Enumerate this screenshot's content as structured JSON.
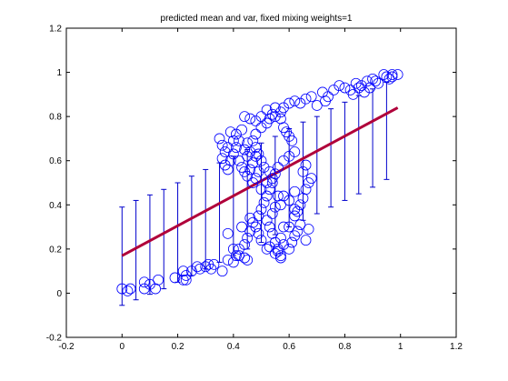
{
  "chart_data": {
    "type": "scatter",
    "title": "predicted mean and var, fixed mixing weights=1",
    "xlabel": "",
    "ylabel": "",
    "xlim": [
      -0.2,
      1.2
    ],
    "ylim": [
      -0.2,
      1.2
    ],
    "xticks": [
      "-0.2",
      "0",
      "0.2",
      "0.4",
      "0.6",
      "0.8",
      "1",
      "1.2"
    ],
    "yticks": [
      "-0.2",
      "0",
      "0.2",
      "0.4",
      "0.6",
      "0.8",
      "1",
      "1.2"
    ],
    "grid": false,
    "colors": {
      "points": "#0000ff",
      "errorbars": "#0000cc",
      "mean_line": "#b0003a",
      "axes": "#000000"
    },
    "mean_line": {
      "x": [
        0.0,
        0.99
      ],
      "y": [
        0.17,
        0.84
      ]
    },
    "errorbars": {
      "x": [
        0.0,
        0.05,
        0.1,
        0.15,
        0.2,
        0.25,
        0.3,
        0.35,
        0.4,
        0.45,
        0.5,
        0.55,
        0.6,
        0.65,
        0.7,
        0.75,
        0.8,
        0.85,
        0.9,
        0.95
      ],
      "y_low": [
        -0.055,
        -0.03,
        -0.005,
        0.02,
        0.05,
        0.08,
        0.11,
        0.14,
        0.17,
        0.2,
        0.23,
        0.265,
        0.3,
        0.33,
        0.36,
        0.39,
        0.42,
        0.45,
        0.48,
        0.515
      ],
      "y_high": [
        0.39,
        0.42,
        0.445,
        0.47,
        0.5,
        0.53,
        0.56,
        0.59,
        0.62,
        0.65,
        0.68,
        0.71,
        0.745,
        0.775,
        0.8,
        0.835,
        0.865,
        0.895,
        0.925,
        0.955
      ]
    },
    "points": [
      [
        0.0,
        0.02
      ],
      [
        0.02,
        0.01
      ],
      [
        0.03,
        0.02
      ],
      [
        0.08,
        0.02
      ],
      [
        0.08,
        0.05
      ],
      [
        0.1,
        0.04
      ],
      [
        0.12,
        0.02
      ],
      [
        0.13,
        0.06
      ],
      [
        0.19,
        0.07
      ],
      [
        0.22,
        0.06
      ],
      [
        0.23,
        0.06
      ],
      [
        0.23,
        0.08
      ],
      [
        0.22,
        0.1
      ],
      [
        0.25,
        0.1
      ],
      [
        0.27,
        0.12
      ],
      [
        0.28,
        0.11
      ],
      [
        0.3,
        0.12
      ],
      [
        0.31,
        0.13
      ],
      [
        0.33,
        0.13
      ],
      [
        0.32,
        0.11
      ],
      [
        0.36,
        0.1
      ],
      [
        0.38,
        0.15
      ],
      [
        0.4,
        0.14
      ],
      [
        0.42,
        0.17
      ],
      [
        0.44,
        0.16
      ],
      [
        0.45,
        0.15
      ],
      [
        0.38,
        0.27
      ],
      [
        0.4,
        0.2
      ],
      [
        0.43,
        0.3
      ],
      [
        0.46,
        0.34
      ],
      [
        0.48,
        0.3
      ],
      [
        0.49,
        0.27
      ],
      [
        0.5,
        0.24
      ],
      [
        0.52,
        0.2
      ],
      [
        0.53,
        0.21
      ],
      [
        0.55,
        0.18
      ],
      [
        0.56,
        0.19
      ],
      [
        0.57,
        0.16
      ],
      [
        0.58,
        0.22
      ],
      [
        0.57,
        0.25
      ],
      [
        0.58,
        0.3
      ],
      [
        0.54,
        0.36
      ],
      [
        0.55,
        0.39
      ],
      [
        0.57,
        0.4
      ],
      [
        0.56,
        0.44
      ],
      [
        0.58,
        0.44
      ],
      [
        0.6,
        0.42
      ],
      [
        0.62,
        0.46
      ],
      [
        0.62,
        0.38
      ],
      [
        0.62,
        0.35
      ],
      [
        0.6,
        0.3
      ],
      [
        0.62,
        0.26
      ],
      [
        0.63,
        0.28
      ],
      [
        0.64,
        0.31
      ],
      [
        0.66,
        0.24
      ],
      [
        0.67,
        0.29
      ],
      [
        0.5,
        0.47
      ],
      [
        0.52,
        0.5
      ],
      [
        0.54,
        0.52
      ],
      [
        0.53,
        0.55
      ],
      [
        0.51,
        0.57
      ],
      [
        0.5,
        0.6
      ],
      [
        0.49,
        0.63
      ],
      [
        0.48,
        0.66
      ],
      [
        0.47,
        0.69
      ],
      [
        0.48,
        0.72
      ],
      [
        0.5,
        0.75
      ],
      [
        0.52,
        0.77
      ],
      [
        0.53,
        0.79
      ],
      [
        0.54,
        0.81
      ],
      [
        0.55,
        0.8
      ],
      [
        0.57,
        0.82
      ],
      [
        0.58,
        0.84
      ],
      [
        0.6,
        0.86
      ],
      [
        0.62,
        0.87
      ],
      [
        0.64,
        0.86
      ],
      [
        0.66,
        0.88
      ],
      [
        0.68,
        0.89
      ],
      [
        0.72,
        0.91
      ],
      [
        0.74,
        0.89
      ],
      [
        0.76,
        0.92
      ],
      [
        0.78,
        0.94
      ],
      [
        0.8,
        0.93
      ],
      [
        0.82,
        0.92
      ],
      [
        0.84,
        0.95
      ],
      [
        0.86,
        0.94
      ],
      [
        0.88,
        0.96
      ],
      [
        0.9,
        0.97
      ],
      [
        0.92,
        0.95
      ],
      [
        0.94,
        0.99
      ],
      [
        0.95,
        0.98
      ],
      [
        0.97,
        0.98
      ],
      [
        0.99,
        0.99
      ],
      [
        0.35,
        0.7
      ],
      [
        0.36,
        0.67
      ],
      [
        0.37,
        0.64
      ],
      [
        0.36,
        0.61
      ],
      [
        0.37,
        0.58
      ],
      [
        0.38,
        0.56
      ],
      [
        0.39,
        0.6
      ],
      [
        0.4,
        0.63
      ],
      [
        0.41,
        0.66
      ],
      [
        0.42,
        0.69
      ],
      [
        0.41,
        0.72
      ],
      [
        0.43,
        0.74
      ],
      [
        0.42,
        0.6
      ],
      [
        0.43,
        0.57
      ],
      [
        0.44,
        0.55
      ],
      [
        0.45,
        0.53
      ],
      [
        0.46,
        0.56
      ],
      [
        0.47,
        0.59
      ],
      [
        0.48,
        0.62
      ],
      [
        0.44,
        0.65
      ],
      [
        0.45,
        0.68
      ],
      [
        0.39,
        0.73
      ],
      [
        0.4,
        0.69
      ],
      [
        0.38,
        0.66
      ],
      [
        0.45,
        0.62
      ],
      [
        0.46,
        0.64
      ],
      [
        0.47,
        0.5
      ],
      [
        0.48,
        0.52
      ],
      [
        0.49,
        0.55
      ],
      [
        0.44,
        0.8
      ],
      [
        0.46,
        0.79
      ],
      [
        0.48,
        0.78
      ],
      [
        0.5,
        0.8
      ],
      [
        0.52,
        0.83
      ],
      [
        0.55,
        0.84
      ],
      [
        0.57,
        0.79
      ],
      [
        0.58,
        0.75
      ],
      [
        0.59,
        0.73
      ],
      [
        0.6,
        0.71
      ],
      [
        0.61,
        0.69
      ],
      [
        0.62,
        0.64
      ],
      [
        0.6,
        0.62
      ],
      [
        0.58,
        0.6
      ],
      [
        0.56,
        0.57
      ],
      [
        0.55,
        0.54
      ],
      [
        0.54,
        0.5
      ],
      [
        0.53,
        0.47
      ],
      [
        0.52,
        0.44
      ],
      [
        0.51,
        0.41
      ],
      [
        0.5,
        0.38
      ],
      [
        0.49,
        0.35
      ],
      [
        0.47,
        0.32
      ],
      [
        0.46,
        0.28
      ],
      [
        0.45,
        0.25
      ],
      [
        0.44,
        0.22
      ],
      [
        0.42,
        0.2
      ],
      [
        0.41,
        0.17
      ],
      [
        0.52,
        0.33
      ],
      [
        0.53,
        0.3
      ],
      [
        0.54,
        0.27
      ],
      [
        0.55,
        0.23
      ],
      [
        0.56,
        0.2
      ],
      [
        0.57,
        0.17
      ],
      [
        0.6,
        0.2
      ],
      [
        0.61,
        0.23
      ],
      [
        0.63,
        0.37
      ],
      [
        0.64,
        0.4
      ],
      [
        0.65,
        0.43
      ],
      [
        0.66,
        0.47
      ],
      [
        0.67,
        0.5
      ],
      [
        0.68,
        0.52
      ],
      [
        0.65,
        0.55
      ],
      [
        0.66,
        0.58
      ],
      [
        0.7,
        0.85
      ],
      [
        0.73,
        0.87
      ],
      [
        0.83,
        0.9
      ],
      [
        0.85,
        0.93
      ],
      [
        0.87,
        0.91
      ],
      [
        0.89,
        0.93
      ],
      [
        0.91,
        0.96
      ],
      [
        0.96,
        0.97
      ],
      [
        0.97,
        0.99
      ]
    ]
  }
}
